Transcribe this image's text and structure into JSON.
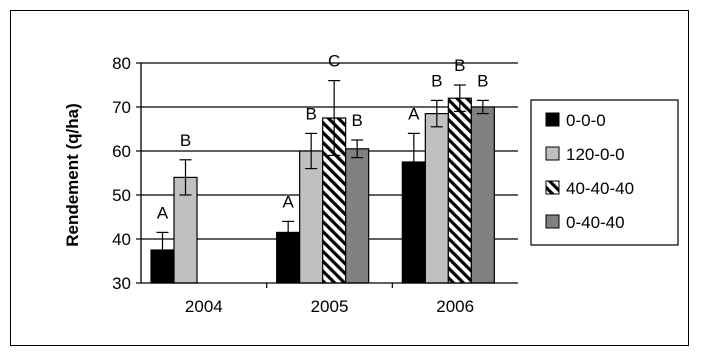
{
  "chart_data": {
    "type": "bar",
    "ylabel": "Rendement (q/ha)",
    "xlabel": "",
    "ylim": [
      30,
      80
    ],
    "yticks": [
      30,
      40,
      50,
      60,
      70,
      80
    ],
    "grid": "horizontal",
    "legend_position": "right",
    "categories": [
      "2004",
      "2005",
      "2006"
    ],
    "series": [
      {
        "name": "0-0-0",
        "pattern": "solid",
        "color": "#000000",
        "values": [
          37.5,
          41.5,
          57.5
        ],
        "errors": [
          4,
          2.5,
          6.5
        ],
        "letters": [
          "A",
          "A",
          "A"
        ]
      },
      {
        "name": "120-0-0",
        "pattern": "solid",
        "color": "#c0c0c0",
        "values": [
          54,
          60,
          68.5
        ],
        "errors": [
          4,
          4,
          3
        ],
        "letters": [
          "B",
          "B",
          "B"
        ]
      },
      {
        "name": "40-40-40",
        "pattern": "diagonal-hatch",
        "color": "#ffffff",
        "values": [
          null,
          67.5,
          72
        ],
        "errors": [
          null,
          8.5,
          3
        ],
        "letters": [
          null,
          "C",
          "B"
        ]
      },
      {
        "name": "0-40-40",
        "pattern": "solid",
        "color": "#808080",
        "values": [
          null,
          60.5,
          70
        ],
        "errors": [
          null,
          2,
          1.5
        ],
        "letters": [
          null,
          "B",
          "B"
        ]
      }
    ]
  }
}
